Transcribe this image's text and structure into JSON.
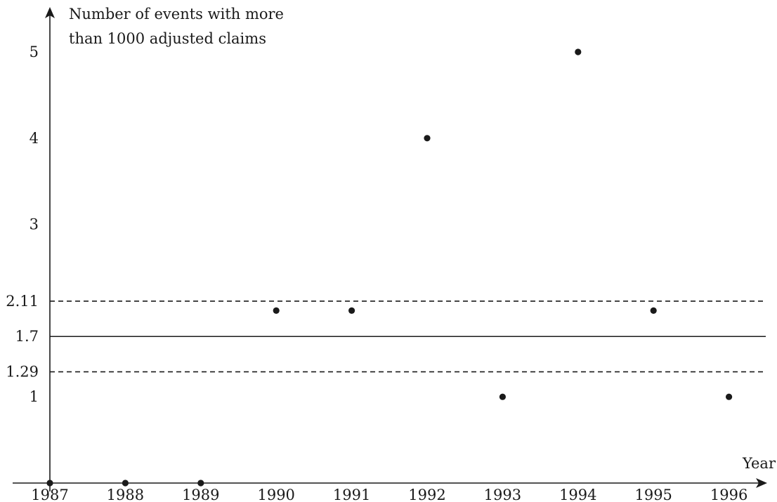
{
  "chart_data": {
    "type": "scatter",
    "title": "",
    "xlabel": "Year",
    "ylabel_lines": [
      "Number of events with more",
      "than 1000 adjusted claims"
    ],
    "x": [
      1987,
      1988,
      1989,
      1990,
      1991,
      1992,
      1993,
      1994,
      1995,
      1996
    ],
    "values": [
      0,
      0,
      0,
      2,
      2,
      4,
      1,
      5,
      2,
      1
    ],
    "x_ticks": [
      "1987",
      "1988",
      "1989",
      "1990",
      "1991",
      "1992",
      "1993",
      "1994",
      "1995",
      "1996"
    ],
    "y_ticks": [
      {
        "value": 1,
        "label": "1"
      },
      {
        "value": 1.29,
        "label": "1.29"
      },
      {
        "value": 1.7,
        "label": "1.7"
      },
      {
        "value": 2.11,
        "label": "2.11"
      },
      {
        "value": 3,
        "label": "3"
      },
      {
        "value": 4,
        "label": "4"
      },
      {
        "value": 5,
        "label": "5"
      }
    ],
    "reference_lines": [
      {
        "value": 2.11,
        "style": "dashed"
      },
      {
        "value": 1.7,
        "style": "solid"
      },
      {
        "value": 1.29,
        "style": "dashed"
      }
    ],
    "xlim": [
      1987,
      1997.2
    ],
    "ylim": [
      0,
      5.6
    ],
    "grid": false,
    "legend": "none"
  }
}
